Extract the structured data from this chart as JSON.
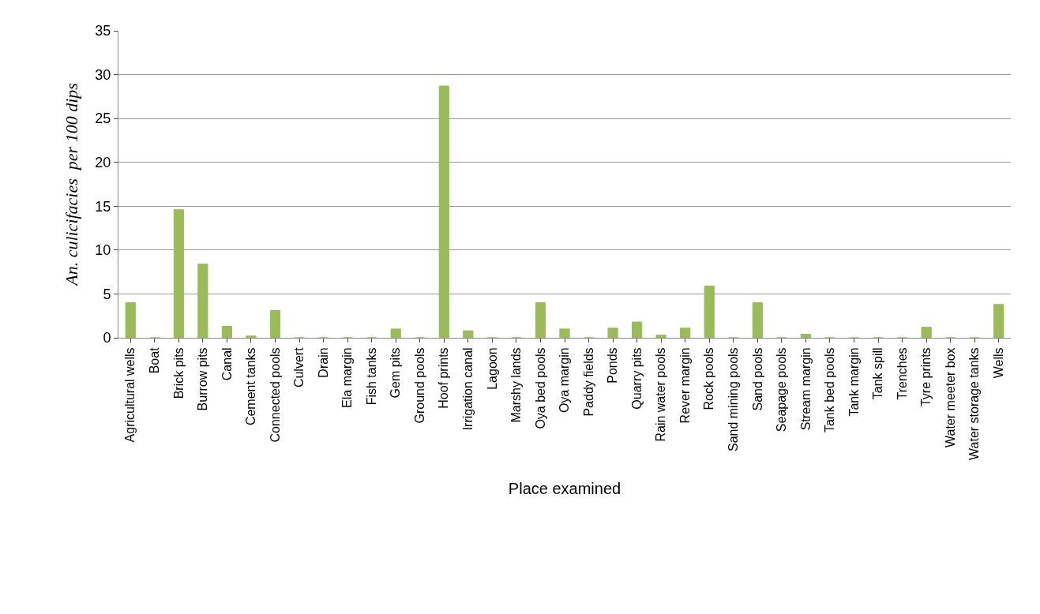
{
  "chart_data": {
    "type": "bar",
    "xlabel": "Place examined",
    "ylabel": "An. culicifacies  per 100 dips",
    "categories": [
      "Agricultural wells",
      "Boat",
      "Brick pits",
      "Burrow pits",
      "Canal",
      "Cement tanks",
      "Connected pools",
      "Culvert",
      "Drain",
      "Ela margin",
      "Fish tanks",
      "Gem pits",
      "Ground pools",
      "Hoof prints",
      "Irrigation canal",
      "Lagoon",
      "Marshy lands",
      "Oya bed pools",
      "Oya margin",
      "Paddy fields",
      "Ponds",
      "Quarry pits",
      "Rain water pools",
      "Rever margin",
      "Rock pools",
      "Sand mining pools",
      "Sand pools",
      "Seapage pools",
      "Stream margin",
      "Tank bed pools",
      "Tank margin",
      "Tank spill",
      "Trenches",
      "Tyre prints",
      "Water meeter box",
      "Water storage tanks",
      "Wells"
    ],
    "values": [
      4.0,
      0,
      14.6,
      8.4,
      1.3,
      0.2,
      3.1,
      0,
      0,
      0,
      0,
      1.0,
      0,
      28.7,
      0.8,
      0,
      0,
      4.0,
      1.0,
      0,
      1.1,
      1.8,
      0.3,
      1.1,
      5.9,
      0,
      4.0,
      0,
      0.4,
      0,
      0,
      0,
      0,
      1.2,
      0,
      0,
      3.8
    ],
    "color": "#9bbb59",
    "ylim": [
      0,
      35
    ],
    "yticks": [
      0,
      5,
      10,
      15,
      20,
      25,
      30,
      35
    ],
    "grid": "y"
  }
}
